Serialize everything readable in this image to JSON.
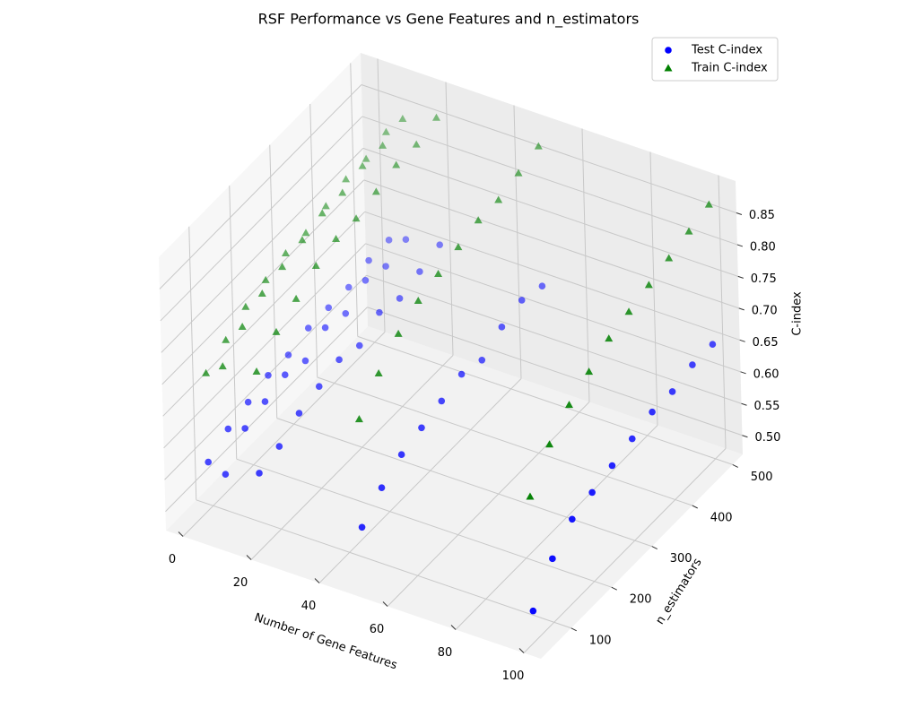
{
  "chart_data": {
    "type": "scatter3d",
    "title": "RSF Performance vs Gene Features and n_estimators",
    "x_label": "Number of Gene Features",
    "y_label": "n_estimators",
    "z_label": "C-index",
    "x": [
      5,
      5,
      5,
      5,
      5,
      5,
      5,
      5,
      5,
      5,
      10,
      10,
      10,
      10,
      10,
      10,
      10,
      10,
      10,
      10,
      20,
      20,
      20,
      20,
      20,
      20,
      20,
      20,
      20,
      20,
      50,
      50,
      50,
      50,
      50,
      50,
      50,
      50,
      50,
      50,
      100,
      100,
      100,
      100,
      100,
      100,
      100,
      100,
      100,
      100
    ],
    "y": [
      50,
      100,
      150,
      200,
      250,
      300,
      350,
      400,
      450,
      500,
      50,
      100,
      150,
      200,
      250,
      300,
      350,
      400,
      450,
      500,
      50,
      100,
      150,
      200,
      250,
      300,
      350,
      400,
      450,
      500,
      50,
      100,
      150,
      200,
      250,
      300,
      350,
      400,
      450,
      500,
      50,
      100,
      150,
      200,
      250,
      300,
      350,
      400,
      450,
      500
    ],
    "series": [
      {
        "name": "Test C-index",
        "color": "#0000ff",
        "marker": "circle",
        "values": [
          0.58,
          0.6,
          0.61,
          0.62,
          0.62,
          0.63,
          0.63,
          0.63,
          0.64,
          0.64,
          0.57,
          0.61,
          0.62,
          0.63,
          0.62,
          0.64,
          0.63,
          0.65,
          0.64,
          0.65,
          0.59,
          0.6,
          0.62,
          0.63,
          0.64,
          0.63,
          0.65,
          0.64,
          0.65,
          0.66,
          0.56,
          0.59,
          0.61,
          0.62,
          0.63,
          0.64,
          0.63,
          0.65,
          0.66,
          0.65,
          0.52,
          0.57,
          0.6,
          0.61,
          0.62,
          0.63,
          0.64,
          0.64,
          0.65,
          0.65
        ]
      },
      {
        "name": "Train C-index",
        "color": "#008000",
        "marker": "triangle",
        "values": [
          0.72,
          0.74,
          0.76,
          0.77,
          0.78,
          0.78,
          0.79,
          0.8,
          0.8,
          0.81,
          0.74,
          0.77,
          0.79,
          0.8,
          0.81,
          0.82,
          0.82,
          0.83,
          0.83,
          0.84,
          0.75,
          0.78,
          0.8,
          0.82,
          0.83,
          0.83,
          0.84,
          0.85,
          0.85,
          0.86,
          0.73,
          0.77,
          0.8,
          0.82,
          0.83,
          0.84,
          0.85,
          0.85,
          0.86,
          0.87,
          0.7,
          0.75,
          0.78,
          0.8,
          0.82,
          0.83,
          0.84,
          0.85,
          0.86,
          0.87
        ]
      }
    ],
    "xlim": [
      -5,
      105
    ],
    "xticks": [
      0,
      20,
      40,
      60,
      80,
      100
    ],
    "ylim": [
      25,
      525
    ],
    "yticks": [
      100,
      200,
      300,
      400,
      500
    ],
    "zlim": [
      0.47,
      0.9
    ],
    "zticks": [
      {
        "value": 0.5,
        "label": "0.50"
      },
      0.55,
      {
        "value": 0.6,
        "label": "0.60"
      },
      0.65,
      {
        "value": 0.7,
        "label": "0.70"
      },
      0.75,
      {
        "value": 0.8,
        "label": "0.80"
      },
      0.85
    ],
    "grid": true,
    "legend": "upper right"
  }
}
